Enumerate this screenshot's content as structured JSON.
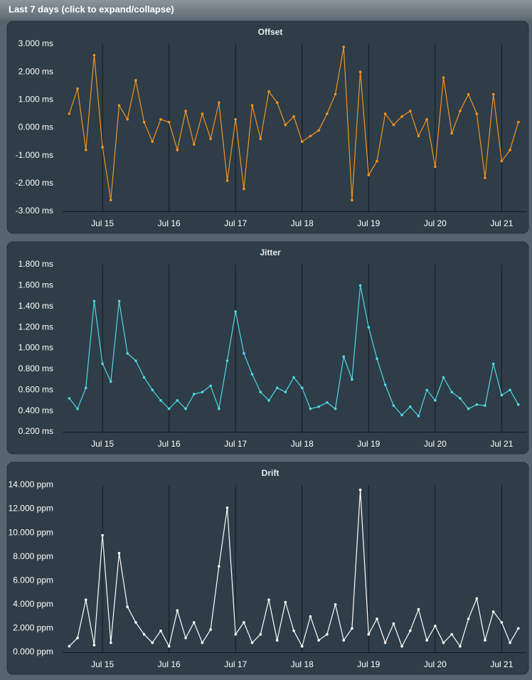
{
  "header": {
    "title": "Last 7 days (click to expand/collapse)"
  },
  "chart_data": [
    {
      "type": "line",
      "title": "Offset",
      "color": "#f39322",
      "x": [
        14.5,
        14.625,
        14.75,
        14.875,
        15,
        15.125,
        15.25,
        15.375,
        15.5,
        15.625,
        15.75,
        15.875,
        16,
        16.125,
        16.25,
        16.375,
        16.5,
        16.625,
        16.75,
        16.875,
        17,
        17.125,
        17.25,
        17.375,
        17.5,
        17.625,
        17.75,
        17.875,
        18,
        18.125,
        18.25,
        18.375,
        18.5,
        18.625,
        18.75,
        18.875,
        19,
        19.125,
        19.25,
        19.375,
        19.5,
        19.625,
        19.75,
        19.875,
        20,
        20.125,
        20.25,
        20.375,
        20.5,
        20.625,
        20.75,
        20.875,
        21,
        21.125,
        21.25
      ],
      "values": [
        0.5,
        1.4,
        -0.8,
        2.6,
        -0.7,
        -2.6,
        0.8,
        0.3,
        1.7,
        0.2,
        -0.5,
        0.3,
        0.2,
        -0.8,
        0.6,
        -0.6,
        0.5,
        -0.4,
        0.9,
        -1.9,
        0.3,
        -2.2,
        0.8,
        -0.4,
        1.3,
        0.9,
        0.1,
        0.4,
        -0.5,
        -0.3,
        -0.1,
        0.5,
        1.2,
        2.9,
        -2.6,
        2.0,
        -1.7,
        -1.2,
        0.5,
        0.1,
        0.4,
        0.6,
        -0.3,
        0.3,
        -1.4,
        1.8,
        -0.2,
        0.6,
        1.2,
        0.5,
        -1.8,
        1.2,
        -1.2,
        -0.8,
        0.2
      ],
      "xlim": [
        14.4,
        21.37
      ],
      "xticks": [
        {
          "value": 15,
          "label": "Jul 15"
        },
        {
          "value": 16,
          "label": "Jul 16"
        },
        {
          "value": 17,
          "label": "Jul 17"
        },
        {
          "value": 18,
          "label": "Jul 18"
        },
        {
          "value": 19,
          "label": "Jul 19"
        },
        {
          "value": 20,
          "label": "Jul 20"
        },
        {
          "value": 21,
          "label": "Jul 21"
        }
      ],
      "ylim": [
        -3,
        3
      ],
      "yticks": [
        {
          "value": -3,
          "label": "-3.000 ms"
        },
        {
          "value": -2,
          "label": "-2.000 ms"
        },
        {
          "value": -1,
          "label": "-1.000 ms"
        },
        {
          "value": 0,
          "label": "0.000 ms"
        },
        {
          "value": 1,
          "label": "1.000 ms"
        },
        {
          "value": 2,
          "label": "2.000 ms"
        },
        {
          "value": 3,
          "label": "3.000 ms"
        }
      ]
    },
    {
      "type": "line",
      "title": "Jitter",
      "color": "#4fd9e8",
      "x": [
        14.5,
        14.625,
        14.75,
        14.875,
        15,
        15.125,
        15.25,
        15.375,
        15.5,
        15.625,
        15.75,
        15.875,
        16,
        16.125,
        16.25,
        16.375,
        16.5,
        16.625,
        16.75,
        16.875,
        17,
        17.125,
        17.25,
        17.375,
        17.5,
        17.625,
        17.75,
        17.875,
        18,
        18.125,
        18.25,
        18.375,
        18.5,
        18.625,
        18.75,
        18.875,
        19,
        19.125,
        19.25,
        19.375,
        19.5,
        19.625,
        19.75,
        19.875,
        20,
        20.125,
        20.25,
        20.375,
        20.5,
        20.625,
        20.75,
        20.875,
        21,
        21.125,
        21.25
      ],
      "values": [
        0.52,
        0.42,
        0.62,
        1.45,
        0.85,
        0.68,
        1.45,
        0.95,
        0.88,
        0.72,
        0.6,
        0.5,
        0.42,
        0.5,
        0.42,
        0.56,
        0.58,
        0.64,
        0.42,
        0.88,
        1.35,
        0.95,
        0.75,
        0.58,
        0.5,
        0.62,
        0.58,
        0.72,
        0.62,
        0.42,
        0.44,
        0.48,
        0.42,
        0.92,
        0.7,
        1.6,
        1.2,
        0.9,
        0.65,
        0.45,
        0.36,
        0.44,
        0.35,
        0.6,
        0.5,
        0.72,
        0.58,
        0.52,
        0.42,
        0.46,
        0.45,
        0.85,
        0.55,
        0.6,
        0.46
      ],
      "xlim": [
        14.4,
        21.37
      ],
      "xticks": [
        {
          "value": 15,
          "label": "Jul 15"
        },
        {
          "value": 16,
          "label": "Jul 16"
        },
        {
          "value": 17,
          "label": "Jul 17"
        },
        {
          "value": 18,
          "label": "Jul 18"
        },
        {
          "value": 19,
          "label": "Jul 19"
        },
        {
          "value": 20,
          "label": "Jul 20"
        },
        {
          "value": 21,
          "label": "Jul 21"
        }
      ],
      "ylim": [
        0.2,
        1.8
      ],
      "yticks": [
        {
          "value": 0.2,
          "label": "0.200 ms"
        },
        {
          "value": 0.4,
          "label": "0.400 ms"
        },
        {
          "value": 0.6,
          "label": "0.600 ms"
        },
        {
          "value": 0.8,
          "label": "0.800 ms"
        },
        {
          "value": 1.0,
          "label": "1.000 ms"
        },
        {
          "value": 1.2,
          "label": "1.200 ms"
        },
        {
          "value": 1.4,
          "label": "1.400 ms"
        },
        {
          "value": 1.6,
          "label": "1.600 ms"
        },
        {
          "value": 1.8,
          "label": "1.800 ms"
        }
      ]
    },
    {
      "type": "line",
      "title": "Drift",
      "color": "#ffffff",
      "x": [
        14.5,
        14.625,
        14.75,
        14.875,
        15,
        15.125,
        15.25,
        15.375,
        15.5,
        15.625,
        15.75,
        15.875,
        16,
        16.125,
        16.25,
        16.375,
        16.5,
        16.625,
        16.75,
        16.875,
        17,
        17.125,
        17.25,
        17.375,
        17.5,
        17.625,
        17.75,
        17.875,
        18,
        18.125,
        18.25,
        18.375,
        18.5,
        18.625,
        18.75,
        18.875,
        19,
        19.125,
        19.25,
        19.375,
        19.5,
        19.625,
        19.75,
        19.875,
        20,
        20.125,
        20.25,
        20.375,
        20.5,
        20.625,
        20.75,
        20.875,
        21,
        21.125,
        21.25
      ],
      "values": [
        0.5,
        1.2,
        4.4,
        0.6,
        9.8,
        0.8,
        8.3,
        3.8,
        2.5,
        1.5,
        0.8,
        1.8,
        0.5,
        3.5,
        1.2,
        2.5,
        0.8,
        1.9,
        7.2,
        12.1,
        1.5,
        2.5,
        0.8,
        1.5,
        4.4,
        1.0,
        4.2,
        1.8,
        0.5,
        3.0,
        1.0,
        1.5,
        4.0,
        1.0,
        2.0,
        13.6,
        1.5,
        2.8,
        0.8,
        2.4,
        0.5,
        1.8,
        3.6,
        1.0,
        2.2,
        0.8,
        1.5,
        0.5,
        2.8,
        4.5,
        1.0,
        3.4,
        2.5,
        0.8,
        2.0
      ],
      "xlim": [
        14.4,
        21.37
      ],
      "xticks": [
        {
          "value": 15,
          "label": "Jul 15"
        },
        {
          "value": 16,
          "label": "Jul 16"
        },
        {
          "value": 17,
          "label": "Jul 17"
        },
        {
          "value": 18,
          "label": "Jul 18"
        },
        {
          "value": 19,
          "label": "Jul 19"
        },
        {
          "value": 20,
          "label": "Jul 20"
        },
        {
          "value": 21,
          "label": "Jul 21"
        }
      ],
      "ylim": [
        0,
        14
      ],
      "yticks": [
        {
          "value": 0,
          "label": "0.000 ppm"
        },
        {
          "value": 2,
          "label": "2.000 ppm"
        },
        {
          "value": 4,
          "label": "4.000 ppm"
        },
        {
          "value": 6,
          "label": "6.000 ppm"
        },
        {
          "value": 8,
          "label": "8.000 ppm"
        },
        {
          "value": 10,
          "label": "10.000 ppm"
        },
        {
          "value": 12,
          "label": "12.000 ppm"
        },
        {
          "value": 14,
          "label": "14.000 ppm"
        }
      ]
    }
  ]
}
